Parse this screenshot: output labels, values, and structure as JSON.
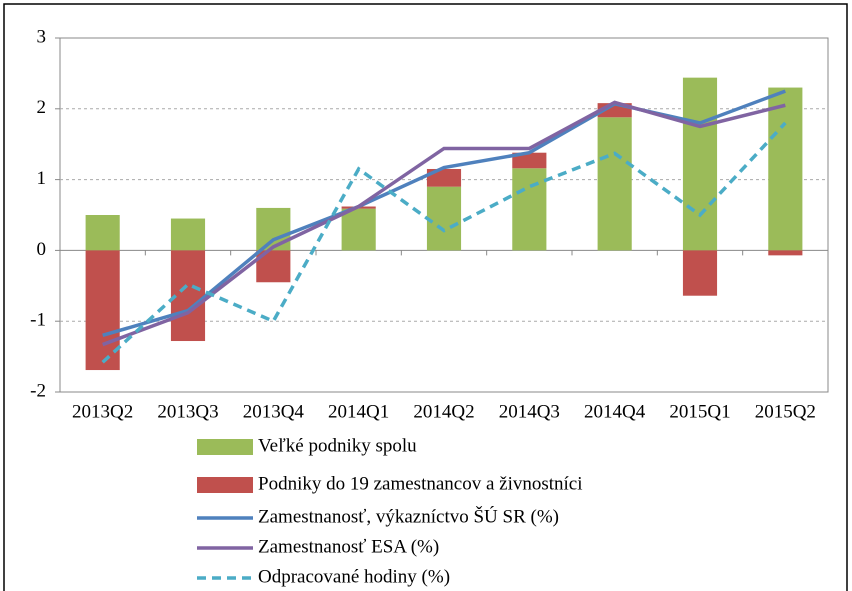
{
  "chart_data": {
    "type": "bar",
    "categories": [
      "2013Q2",
      "2013Q3",
      "2013Q4",
      "2014Q1",
      "2014Q2",
      "2014Q3",
      "2014Q4",
      "2015Q1",
      "2015Q2"
    ],
    "ylim": [
      -2,
      3
    ],
    "yticks": [
      -2,
      -1,
      0,
      1,
      2,
      3
    ],
    "grid": true,
    "series": [
      {
        "name": "Veľké podniky spolu",
        "color": "#9bbb59",
        "kind": "bar",
        "values": [
          0.5,
          0.45,
          0.6,
          0.59,
          0.9,
          1.16,
          1.88,
          2.44,
          2.3
        ]
      },
      {
        "name": "Podniky do 19 zamestnancov a živnostníci",
        "color": "#c0504d",
        "kind": "bar",
        "values": [
          -1.69,
          -1.28,
          -0.45,
          0.03,
          0.25,
          0.22,
          0.2,
          -0.64,
          -0.07
        ]
      },
      {
        "name": "Zamestnanosť, výkazníctvo ŠÚ SR (%)",
        "color": "#4f81bd",
        "kind": "line",
        "values": [
          -1.2,
          -0.85,
          0.15,
          0.62,
          1.17,
          1.38,
          2.07,
          1.8,
          2.25
        ]
      },
      {
        "name": "Zamestnanosť ESA (%)",
        "color": "#8064a2",
        "kind": "line",
        "values": [
          -1.33,
          -0.88,
          0.05,
          0.62,
          1.44,
          1.44,
          2.09,
          1.75,
          2.05
        ]
      },
      {
        "name": "Odpracované hodiny (%)",
        "color": "#4bacc6",
        "kind": "line",
        "dashed": true,
        "values": [
          -1.58,
          -0.48,
          -1.0,
          1.15,
          0.28,
          0.9,
          1.37,
          0.5,
          1.8
        ]
      }
    ]
  }
}
